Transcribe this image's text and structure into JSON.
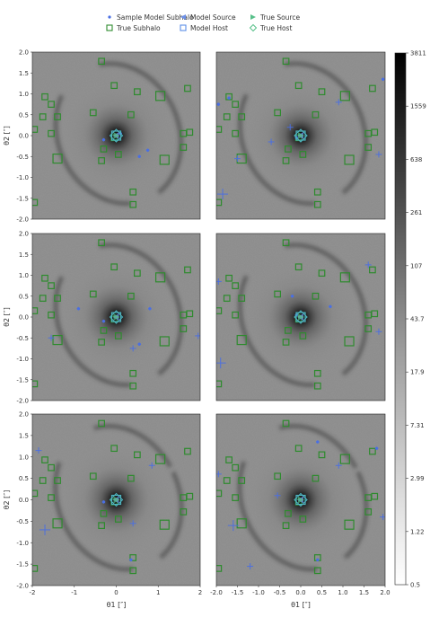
{
  "legend": {
    "items": [
      {
        "label": "Sample Model Subhalo",
        "marker": "dot",
        "color": "#4a6fe3"
      },
      {
        "label": "True Subhalo",
        "marker": "square",
        "color": "#2e8b2e"
      },
      {
        "label": "Model Source",
        "marker": "triangle-left",
        "color": "#6c8fe6"
      },
      {
        "label": "Model Host",
        "marker": "square",
        "color": "#5b8ee6"
      },
      {
        "label": "True Source",
        "marker": "triangle-right",
        "color": "#58c08a"
      },
      {
        "label": "True Host",
        "marker": "diamond",
        "color": "#58c08a"
      }
    ]
  },
  "axes": {
    "xlabel": "θ1 [″]",
    "ylabel": "θ2 [″]",
    "y_ticks": [
      "2.0",
      "1.5",
      "1.0",
      "0.5",
      "0.0",
      "-0.5",
      "-1.0",
      "-1.5",
      "-2.0"
    ],
    "x_ticks_left": [
      "-2",
      "-1",
      "0",
      "1",
      "2"
    ],
    "x_ticks_right": [
      "-2.0",
      "-1.5",
      "-1.0",
      "-0.5",
      "0.0",
      "0.5",
      "1.0",
      "1.5",
      "2.0"
    ]
  },
  "colorbar": {
    "ticks": [
      "3811",
      "1559",
      "638",
      "261",
      "107",
      "43.7",
      "17.9",
      "7.31",
      "2.99",
      "1.22",
      "0.5"
    ],
    "scale": "log"
  },
  "chart_data": {
    "type": "scatter",
    "layout": "3 rows x 2 columns of panels over a lensed-image background",
    "xlim": [
      -2,
      2
    ],
    "ylim": [
      -2,
      2
    ],
    "true_subhalos": [
      {
        "x": -1.7,
        "y": 0.93,
        "s": "m"
      },
      {
        "x": -1.55,
        "y": 0.75,
        "s": "m"
      },
      {
        "x": -1.75,
        "y": 0.45,
        "s": "m"
      },
      {
        "x": -1.4,
        "y": 0.45,
        "s": "m"
      },
      {
        "x": -1.95,
        "y": 0.15,
        "s": "m"
      },
      {
        "x": -1.55,
        "y": 0.05,
        "s": "m"
      },
      {
        "x": -1.4,
        "y": -0.55,
        "s": "l"
      },
      {
        "x": -1.95,
        "y": -1.6,
        "s": "m"
      },
      {
        "x": -0.35,
        "y": 1.78,
        "s": "m"
      },
      {
        "x": -0.55,
        "y": 0.55,
        "s": "m"
      },
      {
        "x": -0.05,
        "y": 1.2,
        "s": "m"
      },
      {
        "x": 0.5,
        "y": 1.05,
        "s": "m"
      },
      {
        "x": 0.35,
        "y": 0.5,
        "s": "m"
      },
      {
        "x": -0.05,
        "y": -0.05,
        "s": "m"
      },
      {
        "x": -0.3,
        "y": -0.32,
        "s": "m"
      },
      {
        "x": -0.35,
        "y": -0.6,
        "s": "m"
      },
      {
        "x": 0.05,
        "y": -0.45,
        "s": "m"
      },
      {
        "x": 0.4,
        "y": -1.35,
        "s": "m"
      },
      {
        "x": 0.4,
        "y": -1.65,
        "s": "m"
      },
      {
        "x": 1.05,
        "y": 0.95,
        "s": "l"
      },
      {
        "x": 1.15,
        "y": -0.58,
        "s": "l"
      },
      {
        "x": 1.7,
        "y": 1.13,
        "s": "m"
      },
      {
        "x": 1.6,
        "y": 0.05,
        "s": "m"
      },
      {
        "x": 1.75,
        "y": 0.08,
        "s": "m"
      },
      {
        "x": 1.6,
        "y": -0.28,
        "s": "m"
      }
    ],
    "host": {
      "x": 0.0,
      "y": 0.0
    },
    "panels": [
      {
        "subhalos": [
          {
            "x": -0.3,
            "y": -0.1,
            "s": "s"
          },
          {
            "x": 0.1,
            "y": 0.05,
            "s": "s"
          },
          {
            "x": 0.75,
            "y": -0.35,
            "s": "s"
          },
          {
            "x": 0.55,
            "y": -0.5,
            "s": "s"
          }
        ]
      },
      {
        "subhalos": [
          {
            "x": -1.95,
            "y": 0.75,
            "s": "s"
          },
          {
            "x": -1.7,
            "y": 0.9,
            "s": "s"
          },
          {
            "x": -1.85,
            "y": -1.4,
            "s": "l"
          },
          {
            "x": -1.5,
            "y": -0.55,
            "s": "m"
          },
          {
            "x": -0.7,
            "y": -0.15,
            "s": "m"
          },
          {
            "x": -0.25,
            "y": 0.2,
            "s": "m"
          },
          {
            "x": -0.1,
            "y": -0.05,
            "s": "s"
          },
          {
            "x": 0.9,
            "y": 0.8,
            "s": "m"
          },
          {
            "x": 1.85,
            "y": -0.45,
            "s": "m"
          },
          {
            "x": 1.95,
            "y": 1.35,
            "s": "s"
          }
        ]
      },
      {
        "subhalos": [
          {
            "x": -0.9,
            "y": 0.2,
            "s": "s"
          },
          {
            "x": -1.55,
            "y": -0.5,
            "s": "m"
          },
          {
            "x": -0.3,
            "y": -0.1,
            "s": "s"
          },
          {
            "x": 0.4,
            "y": -0.75,
            "s": "m"
          },
          {
            "x": 0.55,
            "y": -0.65,
            "s": "s"
          },
          {
            "x": 1.95,
            "y": -0.45,
            "s": "m"
          },
          {
            "x": 0.8,
            "y": 0.2,
            "s": "s"
          }
        ]
      },
      {
        "subhalos": [
          {
            "x": -1.95,
            "y": 0.85,
            "s": "m"
          },
          {
            "x": -1.9,
            "y": -1.1,
            "s": "l"
          },
          {
            "x": -0.2,
            "y": 0.5,
            "s": "s"
          },
          {
            "x": 0.7,
            "y": 0.25,
            "s": "s"
          },
          {
            "x": 1.6,
            "y": 1.25,
            "s": "m"
          },
          {
            "x": 1.85,
            "y": -0.35,
            "s": "m"
          },
          {
            "x": -0.1,
            "y": 0.05,
            "s": "s"
          }
        ]
      },
      {
        "subhalos": [
          {
            "x": -1.85,
            "y": 1.15,
            "s": "m"
          },
          {
            "x": -1.7,
            "y": -0.7,
            "s": "l"
          },
          {
            "x": -0.3,
            "y": -0.05,
            "s": "s"
          },
          {
            "x": 0.4,
            "y": -0.55,
            "s": "m"
          },
          {
            "x": 0.85,
            "y": 0.8,
            "s": "m"
          },
          {
            "x": 0.35,
            "y": -1.4,
            "s": "s"
          }
        ]
      },
      {
        "subhalos": [
          {
            "x": -1.95,
            "y": 0.6,
            "s": "m"
          },
          {
            "x": -1.6,
            "y": -0.6,
            "s": "l"
          },
          {
            "x": -1.2,
            "y": -1.55,
            "s": "m"
          },
          {
            "x": -0.55,
            "y": 0.1,
            "s": "m"
          },
          {
            "x": 0.4,
            "y": 1.35,
            "s": "s"
          },
          {
            "x": 0.9,
            "y": 0.8,
            "s": "m"
          },
          {
            "x": 0.4,
            "y": -1.4,
            "s": "s"
          },
          {
            "x": 1.95,
            "y": -0.4,
            "s": "m"
          },
          {
            "x": 1.8,
            "y": 1.2,
            "s": "s"
          }
        ]
      }
    ]
  }
}
